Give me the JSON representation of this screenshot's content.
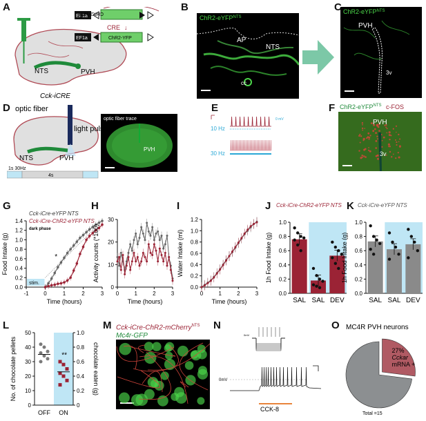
{
  "panels": {
    "A": {
      "label": "A",
      "mouse": "Cck-iCRE",
      "pvh": "PVH",
      "nts": "NTS",
      "promoter1": "EF1a",
      "promoter2": "EF1a",
      "gene_inv": "CHR2-YFP",
      "gene": "ChR2-YFP",
      "cre": "CRE"
    },
    "B": {
      "label": "B",
      "title": "ChR2-eYFP",
      "title_sup": "NTS",
      "ap": "AP",
      "nts": "NTS",
      "cc": "cc"
    },
    "C": {
      "label": "C",
      "title": "ChR2-eYFP",
      "title_sup": "NTS",
      "pvh": "PVH",
      "v3": "3v"
    },
    "D": {
      "label": "D",
      "optic": "optic fiber",
      "light": "light pulse",
      "nts": "NTS",
      "pvh": "PVH",
      "stim1": "1s 30Hz",
      "stim2": "4s",
      "trace": "optic fiber trace",
      "pvh2": "PVH"
    },
    "E": {
      "label": "E",
      "hz10": "10 Hz",
      "hz30": "30 Hz",
      "mv": "0 mV"
    },
    "F": {
      "label": "F",
      "title1": "ChR2-eYFP",
      "title1_sup": "NTS",
      "title2": "c-FOS",
      "pvh": "PVH",
      "v3": "3v"
    },
    "G": {
      "label": "G",
      "legend1": "Cck-iCre-eYFP",
      "legend1_sup": "NTS",
      "legend2": "Cck-iCre-ChR2-eYFP",
      "legend2_sup": "NTS",
      "dark": "dark phase",
      "star": "*",
      "stim": "stim.",
      "ylabel": "Food Intake (g)",
      "xlabel": "Time (hours)",
      "yticks": [
        "0.0",
        "0.2",
        "0.4",
        "0.6",
        "0.8",
        "1.0",
        "1.2",
        "1.4"
      ],
      "xticks": [
        "-1",
        "0",
        "1",
        "2",
        "3"
      ]
    },
    "H": {
      "label": "H",
      "ylabel": "Activity counts (*100)",
      "xlabel": "Time (hours)",
      "yticks": [
        "0",
        "10",
        "20",
        "30"
      ],
      "xticks": [
        "0",
        "1",
        "2",
        "3"
      ]
    },
    "I": {
      "label": "I",
      "ylabel": "Water Intake (ml)",
      "xlabel": "Time (hours)",
      "yticks": [
        "0.0",
        "0.2",
        "0.4",
        "0.6",
        "0.8",
        "1.0",
        "1.2"
      ],
      "xticks": [
        "0",
        "1",
        "2",
        "3"
      ]
    },
    "J": {
      "label": "J",
      "title": "Cck-iCre-ChR2-eYFP",
      "title_sup": "NTS",
      "ylabel": "1h Food Intake (g)",
      "yticks": [
        "0.0",
        "0.2",
        "0.4",
        "0.6",
        "0.8",
        "1.0"
      ],
      "cats": [
        "SAL",
        "SAL",
        "DEV"
      ]
    },
    "K": {
      "label": "K",
      "title": "Cck-iCre-eYFP",
      "title_sup": "NTS",
      "ylabel": "1h Food Intake (g)",
      "yticks": [
        "0.0",
        "0.2",
        "0.4",
        "0.6",
        "0.8",
        "1.0"
      ],
      "cats": [
        "SAL",
        "SAL",
        "DEV"
      ]
    },
    "L": {
      "label": "L",
      "ylabel": "No. of chocolate pellets",
      "ylabel2": "chocolate eaten (g)",
      "yticks": [
        "0",
        "10",
        "20",
        "30",
        "40",
        "50"
      ],
      "yticks2": [
        "0",
        "0.2",
        "0.4",
        "0.6",
        "0.8",
        "1.0"
      ],
      "cats": [
        "OFF",
        "ON"
      ],
      "star": "**"
    },
    "M": {
      "label": "M",
      "title1": "Cck-iCre-ChR2-mCherry",
      "title1_sup": "NTS",
      "title2": "Mc4r-GFP"
    },
    "N": {
      "label": "N",
      "mv1": "0mV",
      "mv2": "0mV",
      "cck": "CCK-8"
    },
    "O": {
      "label": "O",
      "title": "MC4R PVH neurons",
      "slice_pct": "27%",
      "slice_l1": "Cckar",
      "slice_l2": "mRNA +",
      "total": "Total =15"
    }
  },
  "colors": {
    "gfp": "#4cd64a",
    "red": "#9b2335",
    "gray": "#666666",
    "light_blue": "#bfe6f5",
    "pie_red": "#b05a63",
    "pie_gray": "#8c8f91",
    "cyan": "#2aa8d6"
  },
  "chart_data": [
    {
      "type": "line",
      "panel": "G",
      "x": [
        0,
        0.167,
        0.333,
        0.5,
        0.667,
        0.833,
        1,
        1.167,
        1.333,
        1.5,
        1.667,
        1.833,
        2,
        2.167,
        2.333,
        2.5,
        2.667,
        2.833,
        3
      ],
      "series": [
        {
          "name": "Cck-iCre-eYFP",
          "values": [
            0.0,
            0.08,
            0.18,
            0.3,
            0.42,
            0.52,
            0.62,
            0.72,
            0.8,
            0.88,
            0.96,
            1.04,
            1.1,
            1.16,
            1.22,
            1.27,
            1.32,
            1.36,
            1.4
          ]
        },
        {
          "name": "Cck-iCre-ChR2-eYFP",
          "values": [
            0.0,
            0.02,
            0.04,
            0.05,
            0.07,
            0.08,
            0.1,
            0.14,
            0.2,
            0.35,
            0.5,
            0.7,
            0.85,
            1.0,
            1.08,
            1.14,
            1.2,
            1.25,
            1.32
          ]
        }
      ],
      "xlabel": "Time (hours)",
      "ylabel": "Food Intake (g)",
      "ylim": [
        0,
        1.4
      ]
    },
    {
      "type": "line",
      "panel": "H",
      "x": [
        0,
        0.1,
        0.2,
        0.3,
        0.4,
        0.5,
        0.6,
        0.7,
        0.8,
        0.9,
        1,
        1.1,
        1.2,
        1.3,
        1.4,
        1.5,
        1.6,
        1.7,
        1.8,
        1.9,
        2,
        2.1,
        2.2,
        2.3,
        2.4,
        2.5,
        2.6,
        2.7,
        2.8,
        2.9,
        3
      ],
      "series": [
        {
          "name": "Cck-iCre-eYFP",
          "values": [
            14,
            10,
            16,
            12,
            8,
            12,
            16,
            20,
            17,
            22,
            25,
            20,
            23,
            28,
            25,
            22,
            30,
            26,
            24,
            28,
            22,
            25,
            26,
            22,
            24,
            18,
            20,
            24,
            14,
            10,
            4
          ]
        },
        {
          "name": "Cck-iCre-ChR2-eYFP",
          "values": [
            12,
            14,
            8,
            15,
            6,
            10,
            14,
            8,
            12,
            16,
            12,
            14,
            10,
            12,
            16,
            14,
            12,
            20,
            16,
            15,
            20,
            17,
            12,
            18,
            15,
            12,
            16,
            10,
            14,
            8,
            3
          ]
        }
      ],
      "xlabel": "Time (hours)",
      "ylabel": "Activity counts (*100)",
      "ylim": [
        0,
        35
      ]
    },
    {
      "type": "line",
      "panel": "I",
      "x": [
        0,
        0.167,
        0.333,
        0.5,
        0.667,
        0.833,
        1,
        1.167,
        1.333,
        1.5,
        1.667,
        1.833,
        2,
        2.167,
        2.333,
        2.5,
        2.667,
        2.833,
        3
      ],
      "series": [
        {
          "name": "Cck-iCre-eYFP",
          "values": [
            0,
            0.04,
            0.08,
            0.12,
            0.18,
            0.25,
            0.32,
            0.4,
            0.48,
            0.55,
            0.62,
            0.7,
            0.78,
            0.86,
            0.94,
            1.0,
            1.06,
            1.12,
            1.16
          ]
        },
        {
          "name": "Cck-iCre-ChR2-eYFP",
          "values": [
            0,
            0.03,
            0.07,
            0.11,
            0.17,
            0.24,
            0.31,
            0.39,
            0.47,
            0.55,
            0.63,
            0.71,
            0.79,
            0.87,
            0.95,
            1.02,
            1.08,
            1.12,
            1.15
          ]
        }
      ],
      "xlabel": "Time (hours)",
      "ylabel": "Water Intake (ml)",
      "ylim": [
        0,
        1.3
      ]
    },
    {
      "type": "bar",
      "panel": "J",
      "categories": [
        "SAL",
        "SAL",
        "DEV"
      ],
      "values": [
        0.76,
        0.18,
        0.53
      ],
      "points": [
        [
          0.92,
          0.85,
          0.8,
          0.78,
          0.75,
          0.68,
          0.6
        ],
        [
          0.35,
          0.25,
          0.2,
          0.17,
          0.12,
          0.1,
          0.08
        ],
        [
          0.72,
          0.65,
          0.6,
          0.55,
          0.5,
          0.42,
          0.35
        ]
      ],
      "ylabel": "1h Food Intake (g)",
      "ylim": [
        0,
        1.0
      ]
    },
    {
      "type": "bar",
      "panel": "K",
      "categories": [
        "SAL",
        "SAL",
        "DEV"
      ],
      "values": [
        0.73,
        0.62,
        0.69
      ],
      "points": [
        [
          0.95,
          0.8,
          0.75,
          0.7,
          0.62,
          0.55
        ],
        [
          0.85,
          0.72,
          0.65,
          0.55,
          0.48
        ],
        [
          0.9,
          0.8,
          0.72,
          0.6,
          0.5
        ]
      ],
      "ylabel": "1h Food Intake (g)",
      "ylim": [
        0,
        1.0
      ]
    },
    {
      "type": "scatter",
      "panel": "L",
      "categories": [
        "OFF",
        "ON"
      ],
      "means": [
        35,
        23
      ],
      "points": [
        [
          42,
          40,
          37,
          36,
          34,
          32,
          30
        ],
        [
          30,
          28,
          25,
          22,
          20,
          17,
          14
        ]
      ],
      "ylabel": "No. of chocolate pellets",
      "ylim": [
        0,
        50
      ]
    },
    {
      "type": "pie",
      "panel": "O",
      "values": [
        27,
        73
      ],
      "labels": [
        "27% Cckar mRNA +",
        ""
      ]
    }
  ]
}
